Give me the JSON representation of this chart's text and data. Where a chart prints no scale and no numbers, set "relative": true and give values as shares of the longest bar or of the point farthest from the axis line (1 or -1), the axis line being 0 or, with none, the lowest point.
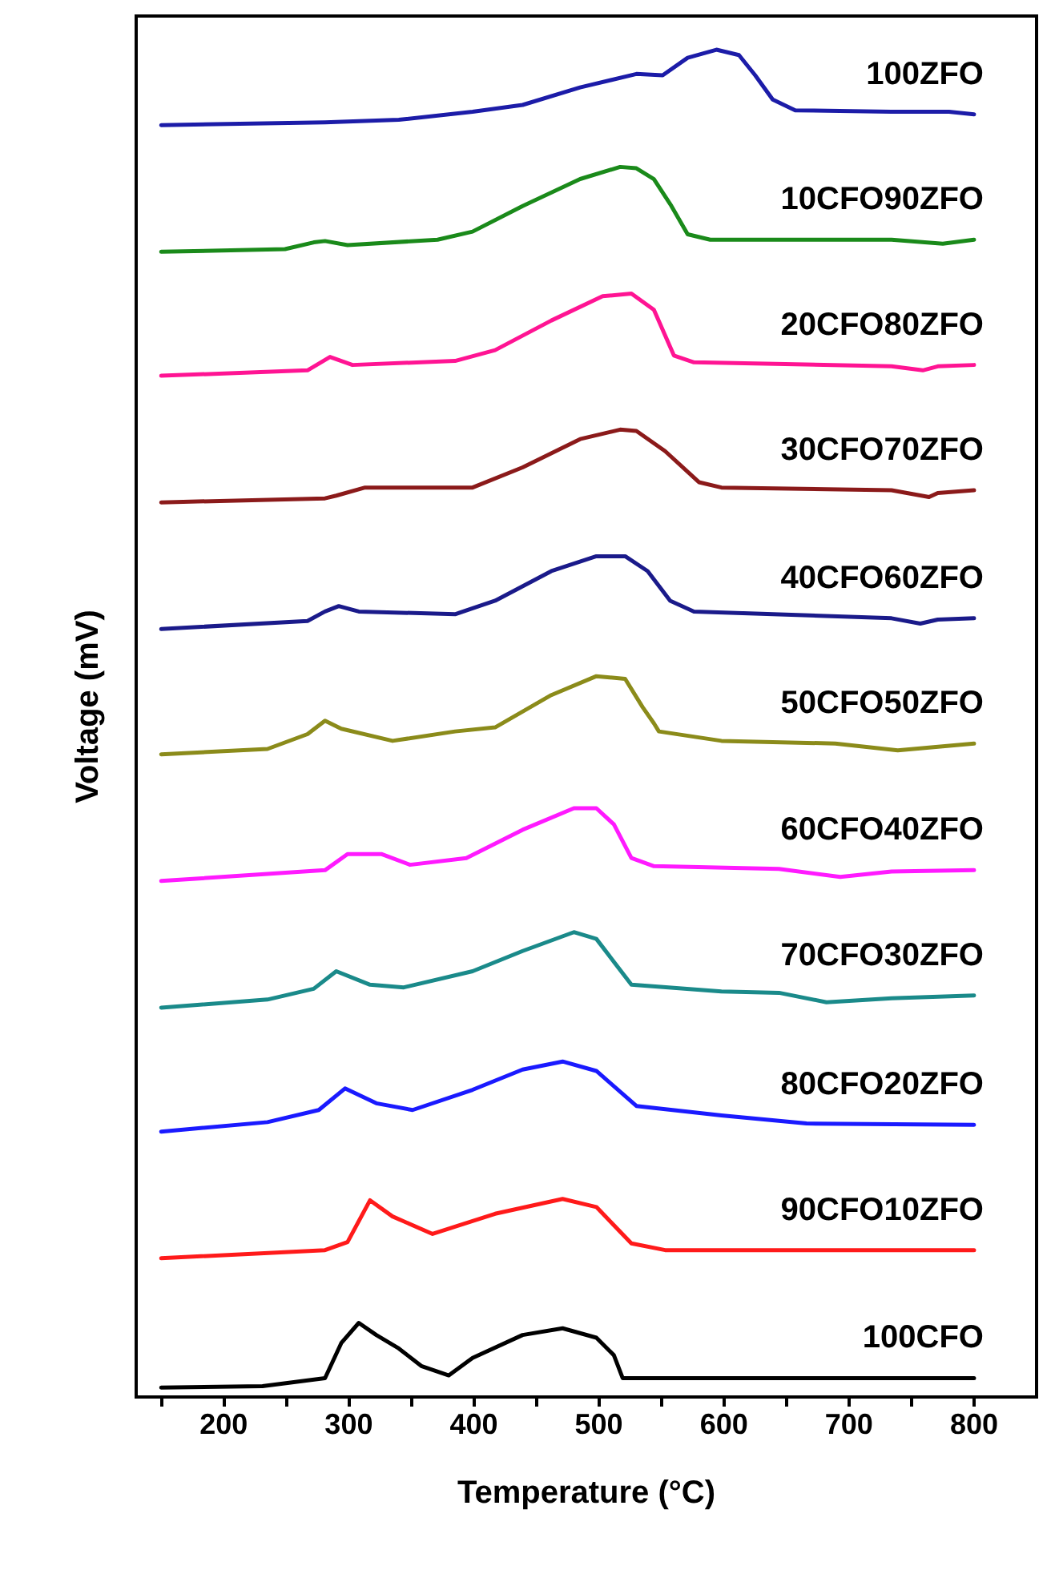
{
  "chart_data": {
    "type": "line",
    "relative": true,
    "xlabel": "Temperature (°C)",
    "ylabel": "Voltage (mV)",
    "xlim": [
      130,
      850
    ],
    "xticks": [
      {
        "value": 150,
        "label": null
      },
      200,
      {
        "value": 250,
        "label": null
      },
      300,
      {
        "value": 350,
        "label": null
      },
      400,
      {
        "value": 450,
        "label": null
      },
      500,
      {
        "value": 550,
        "label": null
      },
      600,
      {
        "value": 650,
        "label": null
      },
      700,
      {
        "value": 750,
        "label": null
      },
      800
    ],
    "tick_labels": "x",
    "marker": "none",
    "line_style": "solid",
    "series": [
      {
        "name": "100ZFO",
        "color": "#1c1ca8",
        "x": [
          150,
          281,
          340,
          399,
          439,
          485,
          530,
          551,
          571,
          594,
          612,
          625,
          639,
          657,
          734,
          780,
          800
        ],
        "values": [
          0.944,
          0.946,
          0.948,
          0.954,
          0.959,
          0.972,
          0.982,
          0.981,
          0.994,
          1.0,
          0.996,
          0.981,
          0.963,
          0.955,
          0.954,
          0.954,
          0.952
        ]
      },
      {
        "name": "10CFO90ZFO",
        "color": "#1a8a1a",
        "x": [
          150,
          249,
          272,
          281,
          299,
          371,
          399,
          439,
          485,
          517,
          530,
          544,
          558,
          571,
          589,
          734,
          775,
          800
        ],
        "values": [
          0.85,
          0.852,
          0.857,
          0.858,
          0.855,
          0.859,
          0.865,
          0.884,
          0.904,
          0.913,
          0.912,
          0.904,
          0.884,
          0.863,
          0.859,
          0.859,
          0.856,
          0.859
        ]
      },
      {
        "name": "20CFO80ZFO",
        "color": "#ff1493",
        "x": [
          150,
          267,
          285,
          303,
          385,
          417,
          462,
          503,
          526,
          544,
          560,
          576,
          734,
          759,
          771,
          800
        ],
        "values": [
          0.758,
          0.762,
          0.772,
          0.766,
          0.769,
          0.777,
          0.799,
          0.817,
          0.819,
          0.807,
          0.773,
          0.768,
          0.765,
          0.762,
          0.765,
          0.766
        ]
      },
      {
        "name": "30CFO70ZFO",
        "color": "#8b1a1a",
        "x": [
          150,
          281,
          290,
          313,
          399,
          439,
          485,
          517,
          530,
          553,
          580,
          598,
          734,
          764,
          771,
          800
        ],
        "values": [
          0.664,
          0.667,
          0.669,
          0.675,
          0.675,
          0.69,
          0.711,
          0.718,
          0.717,
          0.702,
          0.679,
          0.675,
          0.673,
          0.668,
          0.671,
          0.673
        ]
      },
      {
        "name": "40CFO60ZFO",
        "color": "#1a1a8a",
        "x": [
          150,
          267,
          281,
          292,
          308,
          385,
          417,
          462,
          498,
          521,
          539,
          557,
          576,
          734,
          757,
          771,
          800
        ],
        "values": [
          0.57,
          0.576,
          0.583,
          0.587,
          0.583,
          0.581,
          0.591,
          0.613,
          0.624,
          0.624,
          0.613,
          0.591,
          0.583,
          0.578,
          0.574,
          0.577,
          0.578
        ]
      },
      {
        "name": "50CFO50ZFO",
        "color": "#8b8b1a",
        "x": [
          150,
          235,
          267,
          281,
          294,
          335,
          385,
          417,
          462,
          498,
          521,
          535,
          544,
          548,
          598,
          689,
          739,
          800
        ],
        "values": [
          0.477,
          0.481,
          0.492,
          0.502,
          0.496,
          0.487,
          0.494,
          0.497,
          0.521,
          0.535,
          0.533,
          0.512,
          0.5,
          0.494,
          0.487,
          0.485,
          0.48,
          0.485
        ]
      },
      {
        "name": "60CFO40ZFO",
        "color": "#ff1aff",
        "x": [
          150,
          281,
          299,
          326,
          349,
          394,
          439,
          480,
          498,
          512,
          526,
          544,
          644,
          693,
          734,
          800
        ],
        "values": [
          0.383,
          0.391,
          0.403,
          0.403,
          0.395,
          0.4,
          0.421,
          0.437,
          0.437,
          0.425,
          0.4,
          0.394,
          0.392,
          0.386,
          0.39,
          0.391
        ]
      },
      {
        "name": "70CFO30ZFO",
        "color": "#1a8a8a",
        "x": [
          150,
          235,
          272,
          290,
          317,
          344,
          399,
          439,
          480,
          498,
          526,
          598,
          644,
          682,
          734,
          800
        ],
        "values": [
          0.289,
          0.295,
          0.303,
          0.316,
          0.306,
          0.304,
          0.316,
          0.331,
          0.345,
          0.34,
          0.306,
          0.301,
          0.3,
          0.293,
          0.296,
          0.298
        ]
      },
      {
        "name": "80CFO20ZFO",
        "color": "#1a1aff",
        "x": [
          150,
          235,
          276,
          297,
          322,
          351,
          399,
          439,
          471,
          498,
          530,
          598,
          666,
          800
        ],
        "values": [
          0.197,
          0.204,
          0.213,
          0.229,
          0.218,
          0.213,
          0.228,
          0.243,
          0.249,
          0.242,
          0.216,
          0.209,
          0.203,
          0.202
        ]
      },
      {
        "name": "90CFO10ZFO",
        "color": "#ff1a1a",
        "x": [
          150,
          281,
          299,
          317,
          335,
          367,
          417,
          471,
          498,
          526,
          553,
          800
        ],
        "values": [
          0.103,
          0.109,
          0.115,
          0.146,
          0.134,
          0.121,
          0.136,
          0.147,
          0.141,
          0.114,
          0.109,
          0.109
        ]
      },
      {
        "name": "100CFO",
        "color": "#000000",
        "x": [
          150,
          231,
          281,
          294,
          308,
          322,
          340,
          358,
          380,
          399,
          439,
          471,
          498,
          512,
          519,
          800
        ],
        "values": [
          0.007,
          0.008,
          0.014,
          0.04,
          0.055,
          0.046,
          0.036,
          0.023,
          0.016,
          0.029,
          0.046,
          0.051,
          0.044,
          0.031,
          0.014,
          0.014
        ]
      }
    ]
  }
}
